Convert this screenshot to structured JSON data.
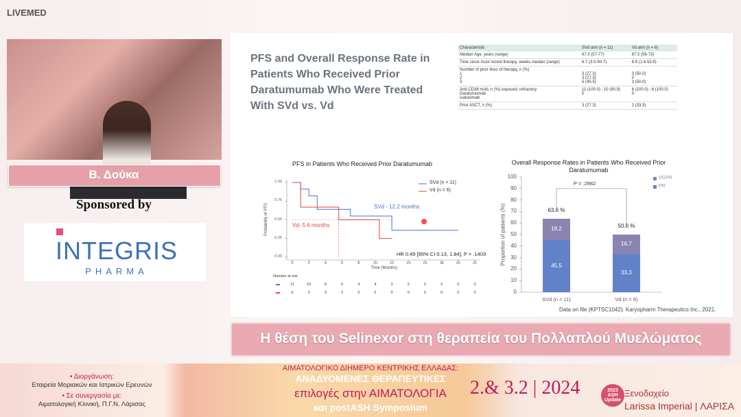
{
  "header": {
    "logo": "LIVEMED"
  },
  "speaker": {
    "name": "Β. Δούκα"
  },
  "sponsor": {
    "label": "Sponsored by",
    "name": "INTEGRIS",
    "sub": "PHARMA"
  },
  "slide": {
    "title": "PFS and Overall Response Rate in Patients Who Received Prior Daratumumab Who Were Treated With SVd vs. Vd",
    "table": {
      "header": [
        "Characteristic",
        "SVd arm (n = 11)",
        "Vd arm (n = 6)"
      ],
      "rows": [
        [
          "Median Age, years (range)",
          "67.0 (57-77)",
          "67.5 (56-73)"
        ],
        [
          "Time since most recent therapy, weeks median (range)",
          "6.7 (3.0-90.7)",
          "6.9 (1.6-53.9)"
        ],
        [
          "Number of prior lines of therapy, n (%)\n1\n2\n3",
          "\n3 (27.3)\n3 (27.3)\n5 (45.5)",
          "\n3 (50.0)\n0\n3 (50.0)"
        ],
        [
          "Anti-CD38 mAb, n (%) exposed; refractory\nDaratumumab\nIsatuximab",
          "11 (100.0) ; 10 (90.9)\n0",
          "6 (100.0) ; 6 (100.0)\n0"
        ],
        [
          "Prior ASCT, n (%)",
          "3 (27.3)",
          "2 (33.3)"
        ]
      ]
    },
    "km": {
      "type": "line",
      "title": "PFS in Patients Who Received Prior Daratumumab",
      "y_label": "Probability of PFS",
      "x_label": "Time (Months)",
      "xlim": [
        0,
        22
      ],
      "xticks": [
        0,
        2,
        4,
        6,
        8,
        10,
        12,
        14,
        16,
        18,
        20,
        22
      ],
      "ylim": [
        0,
        1
      ],
      "yticks": [
        {
          "value": 0,
          "label": "0.00"
        },
        {
          "value": 0.25,
          "label": "0.25"
        },
        {
          "value": 0.5,
          "label": "0.50"
        },
        {
          "value": 0.75,
          "label": "0.75"
        },
        {
          "value": 1,
          "label": "1.00"
        }
      ],
      "series": [
        {
          "name": "SVd (n = 11)",
          "color": "#4a6fd1",
          "x": [
            0,
            1,
            1,
            2,
            2,
            3,
            3,
            7,
            7,
            12,
            12,
            20
          ],
          "values": [
            1,
            1,
            0.91,
            0.91,
            0.82,
            0.82,
            0.64,
            0.64,
            0.55,
            0.55,
            0.36,
            0.36
          ]
        },
        {
          "name": "Vd (n = 6)",
          "color": "#e0403a",
          "x": [
            0,
            1,
            1,
            5.6,
            5.6,
            10.5,
            10.5,
            12
          ],
          "values": [
            1,
            1,
            0.67,
            0.67,
            0.5,
            0.5,
            0.25,
            0.25
          ]
        }
      ],
      "annotations": [
        "SVd - 12.2 months",
        "Vd- 5.6 months",
        "HR 0.49  [95%  CI 0.13, 1.84],  P = .1403"
      ],
      "risk_label": "Number at risk",
      "at_risk": [
        [
          "11",
          "10",
          "6",
          "6",
          "4",
          "4",
          "3",
          "2",
          "2",
          "2",
          "0",
          "0"
        ],
        [
          "6",
          "3",
          "3",
          "2",
          "2",
          "2",
          "0",
          "0",
          "0",
          "0",
          "0",
          "0"
        ]
      ]
    },
    "orr": {
      "type": "bar",
      "title": "Overall Response Rates in Patients Who Received Prior Daratumumab",
      "y_label": "Proportion of patients (%)",
      "categories": [
        "SVd (n = 11)",
        "Vd (n = 6)"
      ],
      "ylim": [
        0,
        100
      ],
      "yticks": [
        0,
        10,
        20,
        30,
        40,
        50,
        60,
        70,
        80,
        90,
        100
      ],
      "series": [
        {
          "name": "PR",
          "color": "#6182c8",
          "values": [
            45.5,
            33.3
          ],
          "value_labels": [
            "45,5",
            "33,3"
          ]
        },
        {
          "name": "VGPR",
          "color": "#8b84b0",
          "values": [
            18.2,
            16.7
          ],
          "value_labels": [
            "18,2",
            "16,7"
          ]
        }
      ],
      "totals": [
        63.6,
        50.0
      ],
      "total_labels": [
        "63.6 %",
        "50.0 %"
      ],
      "p_value": "P = .2982"
    },
    "source": "Data on file (KPTSC1042). Karyopharm Therapeutics Inc., 2021."
  },
  "banner": "Η θέση του Selinexor στη θεραπεία του Πολλαπλού Μυελώματος",
  "footer": {
    "org_label": "• Διοργάνωση:",
    "org": "Εταιρεία Μοριακών και Ιατρικών Ερευνών",
    "partner_label": "• Σε συνεργασία με:",
    "partner": "Αιματολογική Κλινική, Π.Γ.Ν. Λάρισας",
    "event": [
      "ΑΙΜΑΤΟΛΟΓΙΚΟ ΔΙΗΜΕΡΟ ΚΕΝΤΡΙΚΗΣ ΕΛΛΑΔΑΣ:",
      "ΑΝΑΔΥΟΜΕΝΕΣ ΘΕΡΑΠΕΥΤΙΚΕΣ",
      "επιλογές στην ΑΙΜΑΤΟΛΟΓΙΑ",
      "και postASH Symposium"
    ],
    "dates": "2.& 3.2 | 2024",
    "badge": "2023 ASH Update",
    "venue_label": "Ξενοδοχείο",
    "venue": "Larissa Imperial | ΛΑΡΙΣΑ"
  }
}
